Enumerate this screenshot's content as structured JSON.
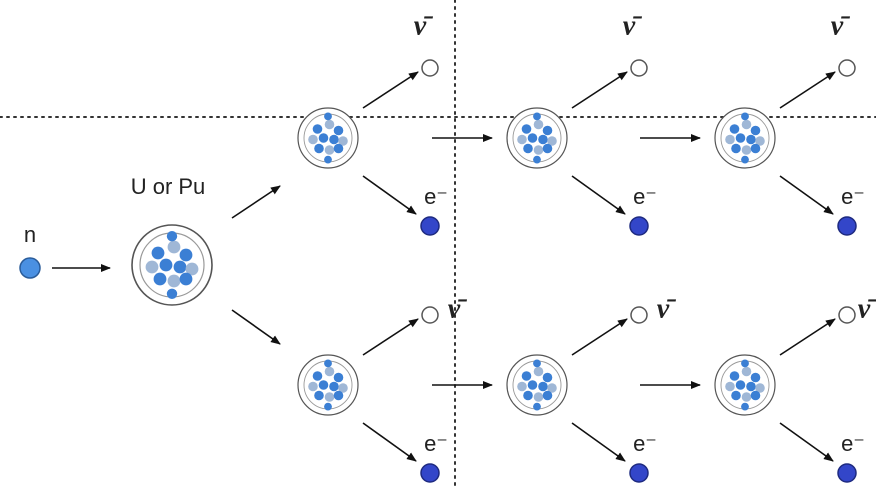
{
  "neutron": {
    "label": "n"
  },
  "target": {
    "label": "U or Pu"
  },
  "fragments": [
    {
      "antineutrino": "ν̄",
      "electron": "e⁻"
    },
    {
      "antineutrino": "ν̄",
      "electron": "e⁻"
    },
    {
      "antineutrino": "ν̄",
      "electron": "e⁻"
    },
    {
      "antineutrino": "ν̄",
      "electron": "e⁻"
    },
    {
      "antineutrino": "ν̄",
      "electron": "e⁻"
    },
    {
      "antineutrino": "ν̄",
      "electron": "e⁻"
    }
  ]
}
